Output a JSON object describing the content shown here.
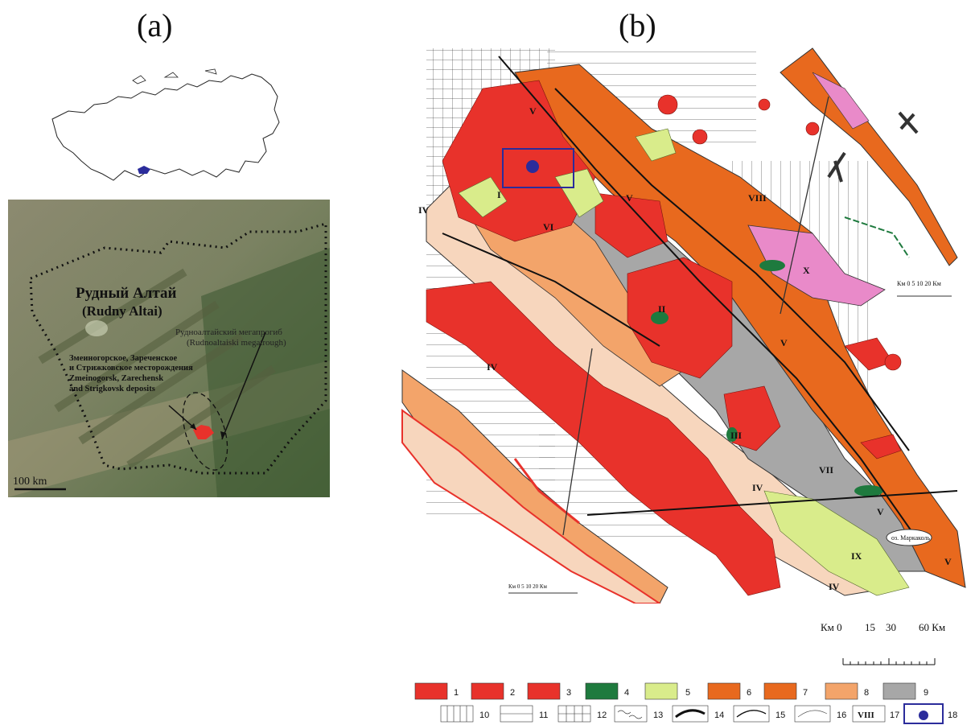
{
  "panel_a": {
    "label": "(a)",
    "satellite": {
      "region_ru": "Рудный Алтай",
      "region_en": "(Rudny Altai)",
      "megatrough_ru": "Рудноалтайский мегапрогиб",
      "megatrough_en": "(Rudnoaltaiski megatrough)",
      "deposits_ru_1": "Змеиногорское, Зареченское",
      "deposits_ru_2": "и Стрижковское месторождения",
      "deposits_en_1": "Zmeinogorsk, Zarechensk",
      "deposits_en_2": "and Strigkovsk deposits",
      "scale": "100 km"
    }
  },
  "panel_b": {
    "label": "(b)",
    "zones": [
      "I",
      "II",
      "III",
      "IV",
      "IV",
      "IV",
      "IV",
      "V",
      "V",
      "V",
      "V",
      "V",
      "VI",
      "VII",
      "VIII",
      "IX",
      "X"
    ],
    "lake": "оз. Маркаколь",
    "inset_scale_top": "Км 0  5  10     20 Км",
    "inset_scale_bottom": "Км 0   5   10        20 Км",
    "main_scale": {
      "km_left": "Км 0",
      "t1": "15",
      "t2": "30",
      "t3": "60 Км"
    },
    "legend": [
      "1",
      "2",
      "3",
      "4",
      "5",
      "6",
      "7",
      "8",
      "9",
      "10",
      "11",
      "12",
      "13",
      "14",
      "15",
      "16",
      "VIII",
      "17",
      "18"
    ]
  },
  "colors": {
    "granite_red": "#e8322b",
    "orange": "#e8691e",
    "light_orange": "#f3a46a",
    "peach": "#f7d6bd",
    "gray": "#a7a7a7",
    "lime": "#d9ec8b",
    "green": "#1e7a3e",
    "pink": "#e98ac9",
    "marker_blue": "#2b2c9b"
  }
}
